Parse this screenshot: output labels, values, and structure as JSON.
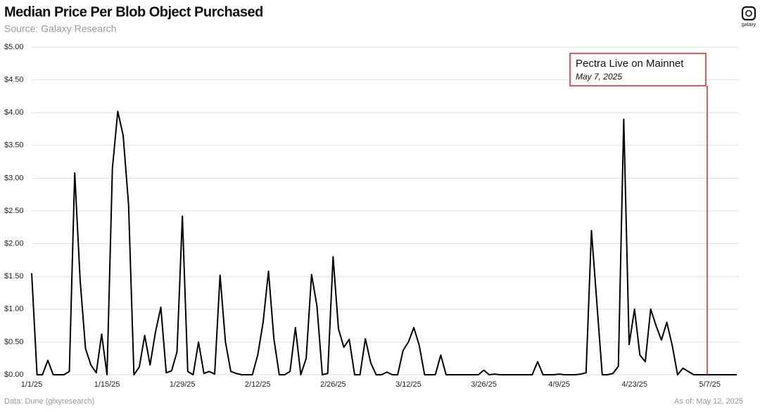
{
  "chart_data": {
    "type": "line",
    "title": "Median Price Per Blob Object Purchased",
    "subtitle": "Source: Galaxy Research",
    "source_note": "Data: Dune (glxyresearch)",
    "as_of": "As of: May 12, 2025",
    "logo_text": "galaxy",
    "annotation": {
      "title": "Pectra Live on Mainnet",
      "date": "May 7, 2025",
      "color": "#d0282e"
    },
    "categories": [
      "1/1/25",
      null,
      null,
      null,
      null,
      null,
      null,
      null,
      null,
      null,
      null,
      null,
      null,
      null,
      "1/15/25",
      null,
      null,
      null,
      null,
      null,
      null,
      null,
      null,
      null,
      null,
      null,
      null,
      null,
      "1/29/25",
      null,
      null,
      null,
      null,
      null,
      null,
      null,
      null,
      null,
      null,
      null,
      null,
      null,
      "2/12/25",
      null,
      null,
      null,
      null,
      null,
      null,
      null,
      null,
      null,
      null,
      null,
      null,
      null,
      "2/26/25",
      null,
      null,
      null,
      null,
      null,
      null,
      null,
      null,
      null,
      null,
      null,
      null,
      null,
      "3/12/25",
      null,
      null,
      null,
      null,
      null,
      null,
      null,
      null,
      null,
      null,
      null,
      null,
      null,
      "3/26/25",
      null,
      null,
      null,
      null,
      null,
      null,
      null,
      null,
      null,
      null,
      null,
      null,
      null,
      "4/9/25",
      null,
      null,
      null,
      null,
      null,
      null,
      null,
      null,
      null,
      null,
      null,
      null,
      null,
      "4/23/25",
      null,
      null,
      null,
      null,
      null,
      null,
      null,
      null,
      null,
      null,
      null,
      null,
      null,
      "5/7/25",
      null,
      null,
      null,
      null,
      null
    ],
    "series": [
      {
        "name": "Median Price",
        "color": "#000000",
        "values": [
          1.55,
          0,
          0,
          0.22,
          0,
          0,
          0,
          0.05,
          3.08,
          1.45,
          0.4,
          0.15,
          0.03,
          0.62,
          0,
          3.15,
          4.02,
          3.65,
          2.6,
          0,
          0.12,
          0.6,
          0.15,
          0.65,
          1.03,
          0.03,
          0.06,
          0.35,
          2.42,
          0.05,
          0,
          0.5,
          0.02,
          0.05,
          0.01,
          1.52,
          0.5,
          0.05,
          0.02,
          0,
          0,
          0,
          0.3,
          0.8,
          1.58,
          0.55,
          0,
          0,
          0.05,
          0.72,
          0,
          0.25,
          1.53,
          1.05,
          0,
          0.02,
          1.8,
          0.7,
          0.42,
          0.54,
          0,
          0,
          0.55,
          0.18,
          0,
          0,
          0.04,
          0,
          0,
          0.37,
          0.5,
          0.72,
          0.45,
          0,
          0,
          0,
          0.3,
          0,
          0,
          0,
          0,
          0,
          0,
          0,
          0.07,
          0,
          0.01,
          0,
          0,
          0,
          0,
          0,
          0,
          0,
          0.2,
          0,
          0,
          0,
          0.01,
          0,
          0,
          0,
          0.01,
          0.03,
          2.2,
          1.1,
          0,
          0,
          0.02,
          0.13,
          3.9,
          0.46,
          1.0,
          0.3,
          0.2,
          1.0,
          0.75,
          0.53,
          0.8,
          0.45,
          0,
          0.1,
          0.05,
          0,
          0,
          0,
          0,
          0,
          0,
          0,
          0,
          0
        ]
      }
    ],
    "ylim": [
      0,
      5
    ],
    "yticks": [
      {
        "value": 0,
        "label": "$0.00"
      },
      {
        "value": 0.5,
        "label": "$0.50"
      },
      {
        "value": 1,
        "label": "$1.00"
      },
      {
        "value": 1.5,
        "label": "$1.50"
      },
      {
        "value": 2,
        "label": "$2.00"
      },
      {
        "value": 2.5,
        "label": "$2.50"
      },
      {
        "value": 3,
        "label": "$3.00"
      },
      {
        "value": 3.5,
        "label": "$3.50"
      },
      {
        "value": 4,
        "label": "$4.00"
      },
      {
        "value": 4.5,
        "label": "$4.50"
      },
      {
        "value": 5,
        "label": "$5.00"
      }
    ],
    "grid": true
  }
}
